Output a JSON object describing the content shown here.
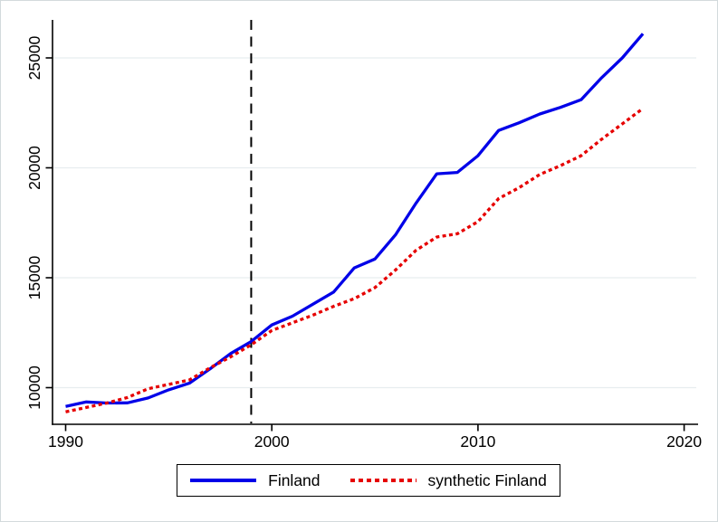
{
  "figure": {
    "background": "#ffffff",
    "outer_border_color": "#d3dadc"
  },
  "chart_data": {
    "type": "line",
    "title": "",
    "xlabel": "",
    "ylabel": "",
    "x": [
      1990,
      1991,
      1992,
      1993,
      1994,
      1995,
      1996,
      1997,
      1998,
      1999,
      2000,
      2001,
      2002,
      2003,
      2004,
      2005,
      2006,
      2007,
      2008,
      2009,
      2010,
      2011,
      2012,
      2013,
      2014,
      2015,
      2016,
      2017,
      2018
    ],
    "series": [
      {
        "name": "Finland",
        "color": "#0000e8",
        "style": "solid",
        "values": [
          9150,
          9350,
          9300,
          9310,
          9530,
          9900,
          10200,
          10850,
          11550,
          12100,
          12850,
          13250,
          13800,
          14350,
          15450,
          15850,
          16950,
          18400,
          19730,
          19790,
          20550,
          21700,
          22050,
          22450,
          22750,
          23100,
          24100,
          25000,
          26100
        ]
      },
      {
        "name": "synthetic Finland",
        "color": "#e60000",
        "style": "dotted",
        "values": [
          8900,
          9100,
          9300,
          9550,
          9950,
          10150,
          10350,
          10900,
          11400,
          11950,
          12600,
          12950,
          13300,
          13700,
          14050,
          14550,
          15350,
          16250,
          16850,
          17000,
          17550,
          18600,
          19100,
          19700,
          20100,
          20550,
          21300,
          22000,
          22700
        ]
      }
    ],
    "x_ticks": [
      1990,
      2000,
      2010,
      2020
    ],
    "y_ticks": [
      10000,
      15000,
      20000,
      25000
    ],
    "x_tick_labels": [
      "1990",
      "2000",
      "2010",
      "2020"
    ],
    "y_tick_labels": [
      "10000",
      "15000",
      "20000",
      "25000"
    ],
    "xlim": [
      1989.3,
      2020.7
    ],
    "ylim": [
      8330,
      26730
    ],
    "grid": "horizontal",
    "gridline_color": "#e7edef",
    "axis_color": "#000000",
    "vline": {
      "x": 1999,
      "style": "dashed",
      "color": "#000000"
    },
    "legend": {
      "position": "bottom-center",
      "entries": [
        "Finland",
        "synthetic Finland"
      ]
    }
  }
}
